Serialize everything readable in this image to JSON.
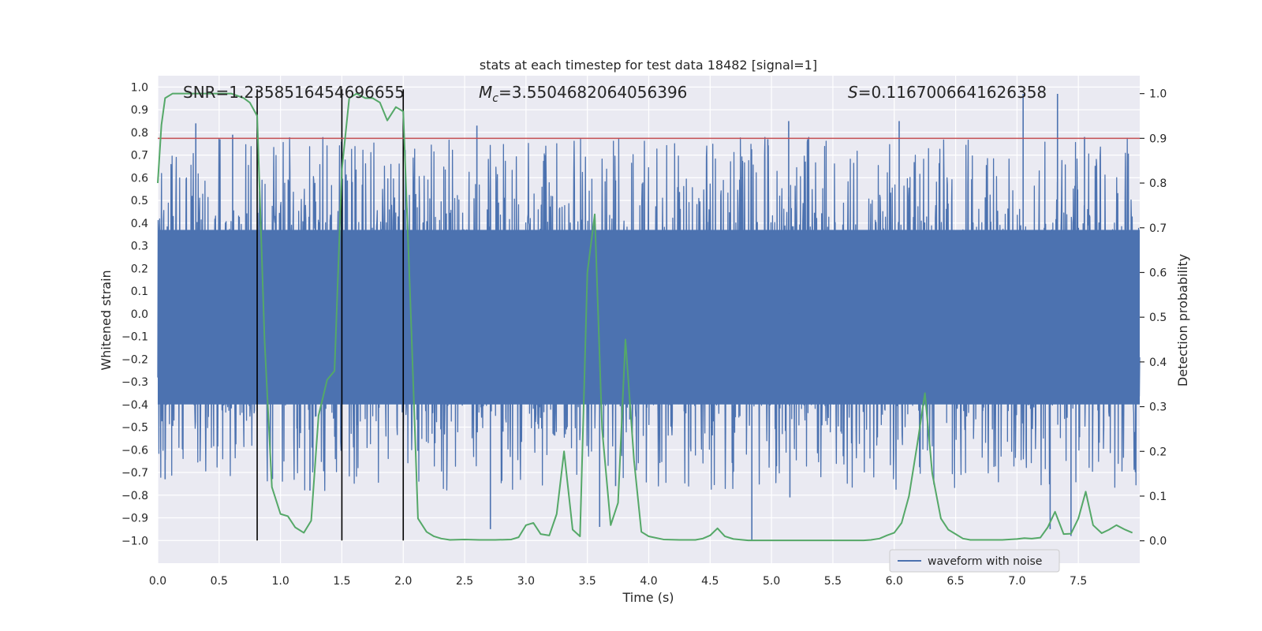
{
  "chart_data": {
    "type": "line",
    "title": "stats at each timestep for test data 18482 [signal=1]",
    "xlabel": "Time (s)",
    "ylabel_left": "Whitened strain",
    "ylabel_right": "Detection probability",
    "xlim": [
      0,
      8
    ],
    "ylim_left": [
      -1.1,
      1.05
    ],
    "ylim_right": [
      -0.05,
      1.04
    ],
    "x_ticks": [
      0.0,
      0.5,
      1.0,
      1.5,
      2.0,
      2.5,
      3.0,
      3.5,
      4.0,
      4.5,
      5.0,
      5.5,
      6.0,
      6.5,
      7.0,
      7.5
    ],
    "x_tick_labels": [
      "0.0",
      "0.5",
      "1.0",
      "1.5",
      "2.0",
      "2.5",
      "3.0",
      "3.5",
      "4.0",
      "4.5",
      "5.0",
      "5.5",
      "6.0",
      "6.5",
      "7.0",
      "7.5"
    ],
    "y_left_ticks": [
      1.0,
      0.9,
      0.8,
      0.7,
      0.6,
      0.5,
      0.4,
      0.3,
      0.2,
      0.1,
      0.0,
      -0.1,
      -0.2,
      -0.3,
      -0.4,
      -0.5,
      -0.6,
      -0.7,
      -0.8,
      -0.9,
      -1.0
    ],
    "y_left_tick_labels": [
      "1.0",
      "0.9",
      "0.8",
      "0.7",
      "0.6",
      "0.5",
      "0.4",
      "0.3",
      "0.2",
      "0.1",
      "0.0",
      "−0.1",
      "−0.2",
      "−0.3",
      "−0.4",
      "−0.5",
      "−0.6",
      "−0.7",
      "−0.8",
      "−0.9",
      "−1.0"
    ],
    "y_right_ticks": [
      1.0,
      0.9,
      0.8,
      0.7,
      0.6,
      0.5,
      0.4,
      0.3,
      0.2,
      0.1,
      0.0
    ],
    "y_right_tick_labels": [
      "1.0",
      "0.9",
      "0.8",
      "0.7",
      "0.6",
      "0.5",
      "0.4",
      "0.3",
      "0.2",
      "0.1",
      "0.0"
    ],
    "annotations": [
      {
        "label": "SNR=1.2358516454696655",
        "x": 0.2
      },
      {
        "label": "M_c=3.5504682064056396",
        "x": 2.6,
        "math_symbol": "M",
        "math_sub": "c",
        "math_rest": "=3.5504682064056396"
      },
      {
        "label": "S=0.1167006641626358",
        "x": 5.6,
        "math_symbol": "S",
        "math_rest": "=0.1167006641626358"
      }
    ],
    "vertical_markers_x": [
      0.81,
      1.5,
      2.0
    ],
    "threshold_right": 0.9,
    "series": [
      {
        "name": "waveform with noise",
        "axis": "left",
        "color": "#4c72b0",
        "kind": "noise",
        "duration": 8.0,
        "dense_band_amplitude": 0.4,
        "max_amplitude": 1.0,
        "spikes": [
          {
            "x": 0.31,
            "y": 0.84
          },
          {
            "x": 0.61,
            "y": 0.79
          },
          {
            "x": 2.6,
            "y": 0.83
          },
          {
            "x": 4.97,
            "y": 0.77
          },
          {
            "x": 5.14,
            "y": 0.85
          },
          {
            "x": 6.04,
            "y": 0.85
          },
          {
            "x": 7.05,
            "y": 0.97
          },
          {
            "x": 7.33,
            "y": 0.97
          },
          {
            "x": 7.55,
            "y": 0.78
          },
          {
            "x": 0.06,
            "y": -0.73
          },
          {
            "x": 2.71,
            "y": -0.95
          },
          {
            "x": 3.6,
            "y": -0.94
          },
          {
            "x": 4.84,
            "y": -1.0
          },
          {
            "x": 5.15,
            "y": -0.81
          },
          {
            "x": 7.27,
            "y": -0.95
          },
          {
            "x": 7.44,
            "y": -0.98
          },
          {
            "x": 1.24,
            "y": -0.78
          },
          {
            "x": 3.73,
            "y": -0.76
          }
        ]
      },
      {
        "name": "detection probability",
        "axis": "right",
        "color": "#55a868",
        "x": [
          0.0,
          0.03,
          0.06,
          0.12,
          0.2,
          0.3,
          0.4,
          0.5,
          0.6,
          0.7,
          0.75,
          0.81,
          0.87,
          0.93,
          1.0,
          1.06,
          1.12,
          1.19,
          1.25,
          1.31,
          1.38,
          1.44,
          1.5,
          1.56,
          1.62,
          1.69,
          1.75,
          1.81,
          1.87,
          1.94,
          2.0,
          2.06,
          2.12,
          2.19,
          2.25,
          2.31,
          2.38,
          2.5,
          2.62,
          2.75,
          2.88,
          2.94,
          3.0,
          3.06,
          3.12,
          3.19,
          3.25,
          3.31,
          3.38,
          3.44,
          3.5,
          3.56,
          3.62,
          3.69,
          3.75,
          3.81,
          3.88,
          3.94,
          4.0,
          4.12,
          4.25,
          4.38,
          4.44,
          4.5,
          4.56,
          4.62,
          4.69,
          4.81,
          5.0,
          5.25,
          5.5,
          5.75,
          5.81,
          5.88,
          5.94,
          6.0,
          6.06,
          6.12,
          6.19,
          6.25,
          6.31,
          6.38,
          6.44,
          6.5,
          6.56,
          6.62,
          6.69,
          6.75,
          6.88,
          7.0,
          7.06,
          7.12,
          7.19,
          7.25,
          7.31,
          7.38,
          7.44,
          7.5,
          7.56,
          7.62,
          7.69,
          7.75,
          7.81,
          7.88,
          7.94
        ],
        "y": [
          0.8,
          0.93,
          0.99,
          1.0,
          1.0,
          1.0,
          1.0,
          1.0,
          1.0,
          0.99,
          0.98,
          0.95,
          0.45,
          0.12,
          0.06,
          0.055,
          0.03,
          0.018,
          0.045,
          0.28,
          0.36,
          0.38,
          0.83,
          0.99,
          1.0,
          0.99,
          0.99,
          0.98,
          0.94,
          0.97,
          0.96,
          0.52,
          0.05,
          0.02,
          0.01,
          0.005,
          0.002,
          0.003,
          0.002,
          0.002,
          0.003,
          0.008,
          0.035,
          0.04,
          0.015,
          0.012,
          0.06,
          0.2,
          0.025,
          0.01,
          0.6,
          0.73,
          0.25,
          0.035,
          0.085,
          0.45,
          0.18,
          0.02,
          0.01,
          0.003,
          0.002,
          0.002,
          0.005,
          0.012,
          0.028,
          0.01,
          0.004,
          0.001,
          0.001,
          0.001,
          0.001,
          0.001,
          0.002,
          0.005,
          0.012,
          0.018,
          0.04,
          0.1,
          0.22,
          0.33,
          0.15,
          0.05,
          0.025,
          0.015,
          0.005,
          0.002,
          0.002,
          0.002,
          0.002,
          0.004,
          0.006,
          0.005,
          0.007,
          0.03,
          0.065,
          0.015,
          0.016,
          0.05,
          0.11,
          0.035,
          0.017,
          0.025,
          0.035,
          0.025,
          0.018
        ]
      },
      {
        "name": "threshold",
        "axis": "right",
        "color": "#c44e52",
        "y_const": 0.9
      }
    ],
    "legend": {
      "entries": [
        "waveform with noise"
      ],
      "placement": "lower-right"
    }
  },
  "colors": {
    "background": "#eaeaf2",
    "grid": "#ffffff",
    "waveform": "#4c72b0",
    "probability": "#55a868",
    "threshold": "#c44e52",
    "marker": "#000000"
  }
}
